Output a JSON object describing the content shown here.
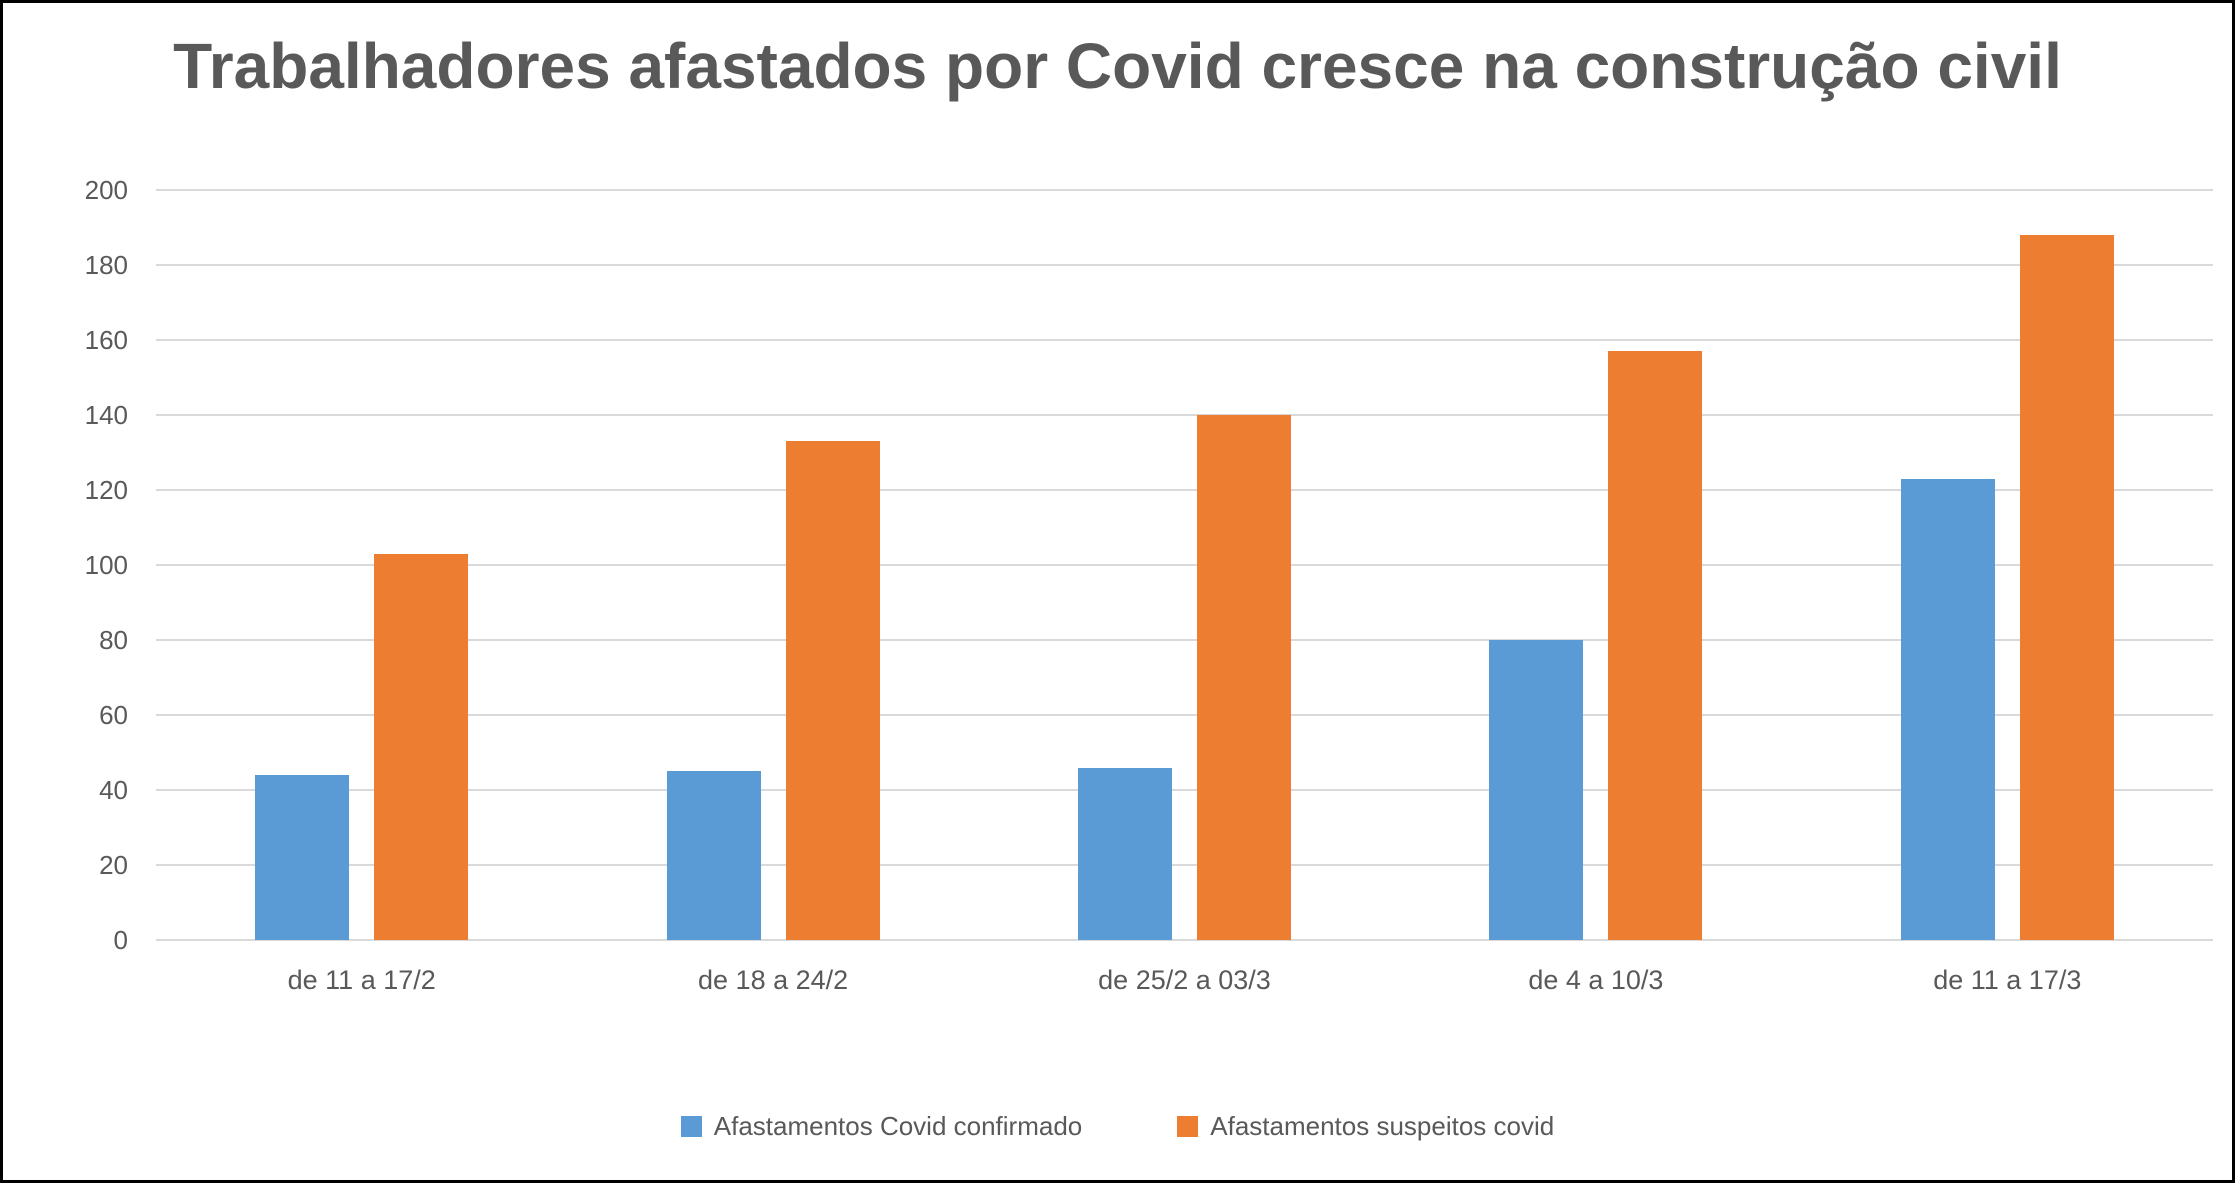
{
  "chart_data": {
    "type": "bar",
    "title": "Trabalhadores afastados por Covid cresce na construção civil",
    "categories": [
      "de 11 a 17/2",
      "de 18 a 24/2",
      "de 25/2 a 03/3",
      "de 4 a 10/3",
      "de 11 a 17/3"
    ],
    "series": [
      {
        "name": "Afastamentos Covid confirmado",
        "color": "#5B9BD5",
        "values": [
          44,
          45,
          46,
          80,
          123
        ]
      },
      {
        "name": "Afastamentos suspeitos covid",
        "color": "#ED7D31",
        "values": [
          103,
          133,
          140,
          157,
          188
        ]
      }
    ],
    "xlabel": "",
    "ylabel": "",
    "ylim": [
      0,
      200
    ],
    "ytick_step": 20,
    "grid": true,
    "legend_position": "bottom"
  },
  "colors": {
    "grid": "#d9d9d9",
    "text": "#595959",
    "frame_border": "#000000",
    "background": "#ffffff"
  }
}
